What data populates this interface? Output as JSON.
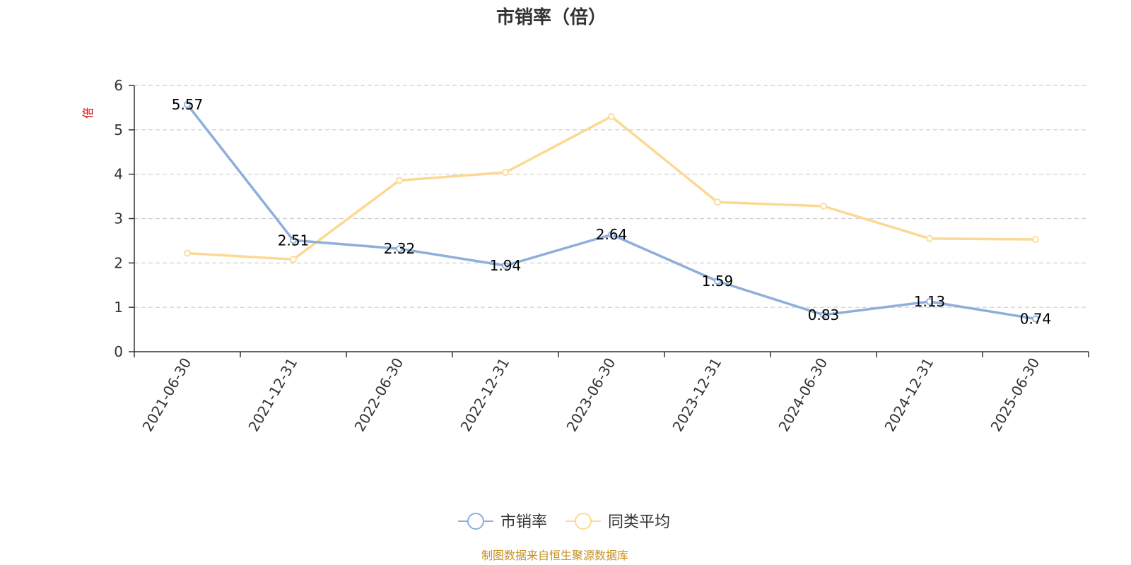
{
  "chart_data": {
    "type": "line",
    "title": "市销率（倍）",
    "ylabel": "倍",
    "ylim": [
      0,
      6
    ],
    "yticks": [
      0,
      1,
      2,
      3,
      4,
      5,
      6
    ],
    "categories": [
      "2021-06-30",
      "2021-12-31",
      "2022-06-30",
      "2022-12-31",
      "2023-06-30",
      "2023-12-31",
      "2024-06-30",
      "2024-12-31",
      "2025-06-30"
    ],
    "series": [
      {
        "name": "市销率",
        "color": "#8eaedb",
        "values": [
          5.57,
          2.51,
          2.32,
          1.94,
          2.64,
          1.59,
          0.83,
          1.13,
          0.74
        ],
        "labels": true
      },
      {
        "name": "同类平均",
        "color": "#fcd993",
        "values": [
          2.22,
          2.08,
          3.86,
          4.04,
          5.3,
          3.37,
          3.28,
          2.55,
          2.53
        ],
        "labels": false
      }
    ],
    "grid": "horizontal-dashed",
    "legend_position": "bottom-center"
  },
  "footer": "制图数据来自恒生聚源数据库"
}
